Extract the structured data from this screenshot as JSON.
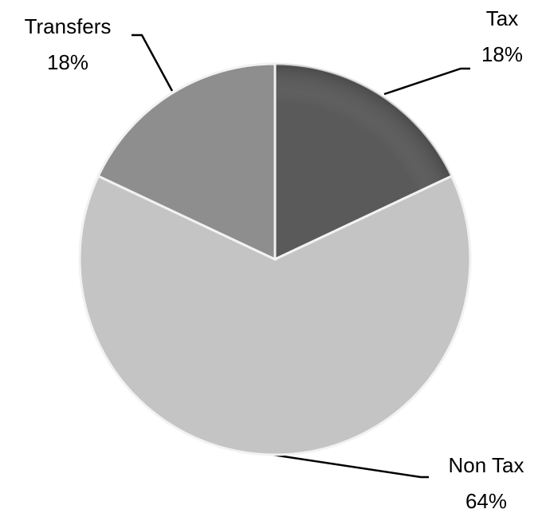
{
  "chart_data": {
    "type": "pie",
    "categories": [
      "Tax",
      "Non Tax",
      "Transfers"
    ],
    "values": [
      18,
      64,
      18
    ],
    "value_labels": [
      "18%",
      "64%",
      "18%"
    ],
    "colors": [
      "#5a5a5a",
      "#c4c4c4",
      "#8e8e8e"
    ]
  }
}
